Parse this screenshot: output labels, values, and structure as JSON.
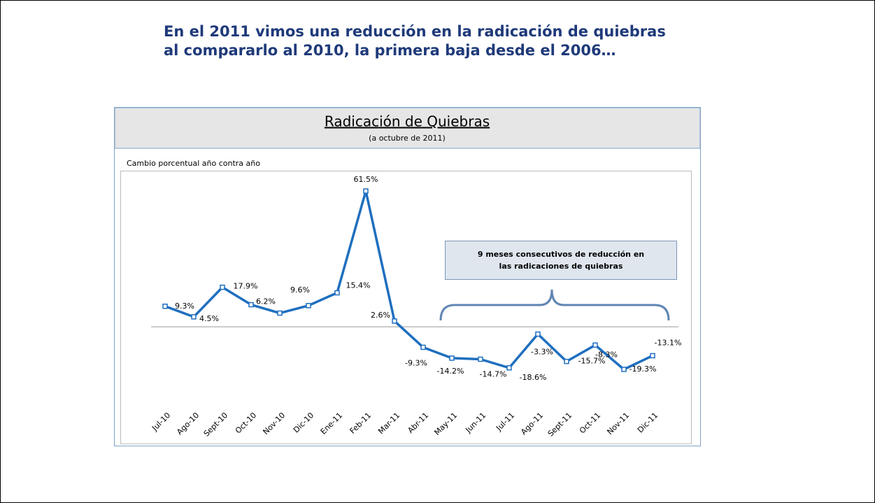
{
  "header": {
    "title_lines": [
      "En el 2011 vimos una reducción en la radicación de quiebras",
      "al compararlo al 2010, la primera baja desde el 2006…"
    ]
  },
  "chart_data": {
    "type": "line",
    "title": "Radicación de Quiebras",
    "subtitle": "(a octubre de 2011)",
    "y_label": "Cambio porcentual año contra año",
    "annotation_lines": [
      "9 meses consecutivos de reducción en",
      "las radicaciones de quiebras"
    ],
    "categories": [
      "Jul-10",
      "Ago-10",
      "Sept-10",
      "Oct-10",
      "Nov-10",
      "Dic-10",
      "Ene-11",
      "Feb-11",
      "Mar-11",
      "Abr-11",
      "May-11",
      "Jun-11",
      "Jul-11",
      "Ago-11",
      "Sept-11",
      "Oct-11",
      "Nov-11",
      "Dic-11"
    ],
    "values": [
      9.3,
      4.5,
      17.9,
      10,
      6.2,
      9.6,
      15.4,
      61.5,
      2.6,
      -9.3,
      -14.2,
      -14.7,
      -18.6,
      -3.3,
      -15.7,
      -8.3,
      -19.3,
      -13.1
    ],
    "value_labels": [
      "9.3%",
      "4.5%",
      "17.9%",
      null,
      "6.2%",
      "9.6%",
      "15.4%",
      "61.5%",
      "2.6%",
      "-9.3%",
      "-14.2%",
      "-14.7%",
      "-18.6%",
      "-3.3%",
      "-15.7%",
      "-8.3%",
      "-19.3%",
      "-13.1%"
    ],
    "color": "#1f6fbf",
    "ylim": [
      -25,
      65
    ]
  }
}
